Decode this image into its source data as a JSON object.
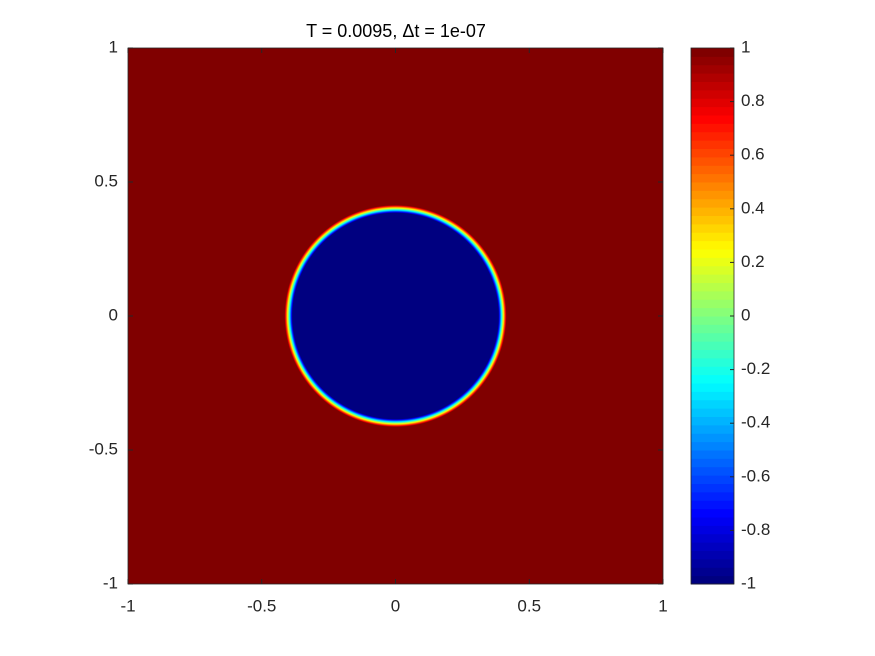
{
  "chart_data": {
    "type": "image",
    "title": "T = 0.0095,  Δt = 1e-07",
    "colormap": "jet",
    "circle": {
      "center": [
        0,
        0
      ],
      "radius": 0.4,
      "inside": -1,
      "outside": 1
    },
    "xlim": [
      -1,
      1
    ],
    "xticks": [
      -1,
      -0.5,
      0,
      0.5,
      1
    ],
    "ylim": [
      -1,
      1
    ],
    "yticks": [
      -1,
      -0.5,
      0,
      0.5,
      1
    ],
    "clim": [
      -1,
      1
    ],
    "cticks": [
      -1,
      -0.8,
      -0.6,
      -0.4,
      -0.2,
      0,
      0.2,
      0.4,
      0.6,
      0.8,
      1
    ]
  }
}
